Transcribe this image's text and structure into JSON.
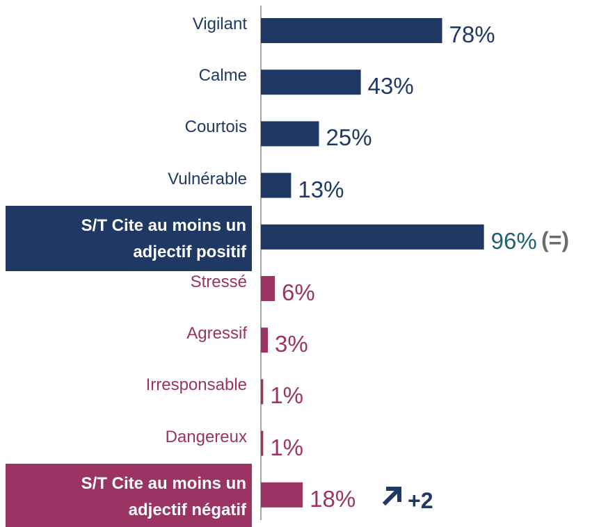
{
  "chart_data": {
    "type": "hbar",
    "categories": [
      "Vigilant",
      "Calme",
      "Courtois",
      "Vulnérable",
      "S/T Cite au moins un adjectif positif",
      "Stressé",
      "Agressif",
      "Irresponsable",
      "Dangereux",
      "S/T Cite au moins un adjectif négatif"
    ],
    "values": [
      78,
      43,
      25,
      13,
      96,
      6,
      3,
      1,
      1,
      18
    ],
    "value_labels": [
      "78%",
      "43%",
      "25%",
      "13%",
      "96%",
      "6%",
      "3%",
      "1%",
      "1%",
      "18%"
    ],
    "colors": [
      "#1f3864",
      "#1f3864",
      "#1f3864",
      "#1f3864",
      "#1f3864",
      "#9b3363",
      "#9b3363",
      "#9b3363",
      "#9b3363",
      "#9b3363"
    ],
    "value_label_colors": [
      "#1f3864",
      "#1f3864",
      "#1f3864",
      "#1f3864",
      "#1f6075",
      "#9b3363",
      "#9b3363",
      "#9b3363",
      "#9b3363",
      "#9b3363"
    ],
    "highlighted_categories": [
      4,
      9
    ],
    "xlim": [
      0,
      100
    ],
    "annotations": [
      "(=)",
      "+2"
    ]
  }
}
